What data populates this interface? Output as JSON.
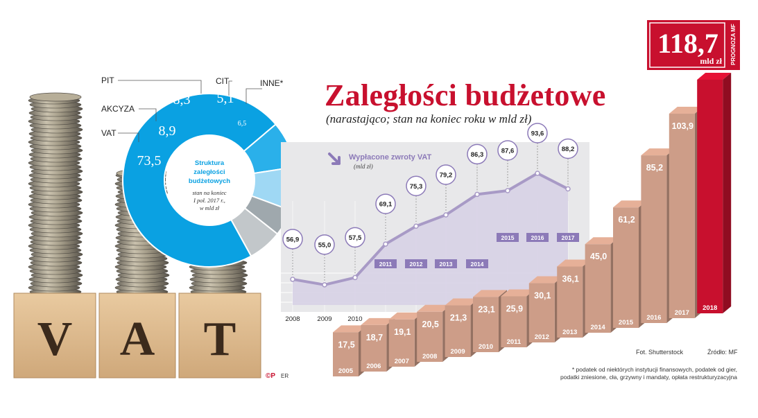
{
  "header": {
    "title": "Zaległości budżetowe",
    "subtitle": "(narastająco; stan na koniec roku w mld zł)",
    "forecast_value": "118,7",
    "forecast_unit": "mld zł",
    "forecast_label": "PROGNOZA MF"
  },
  "colors": {
    "accent_red": "#c8102e",
    "bar": "#cd9d88",
    "donut_blue": "#0aa1e2",
    "line_purple": "#a89ac6",
    "label_purple": "#8c7ab8"
  },
  "photo": {
    "blocks": [
      "V",
      "A",
      "T"
    ]
  },
  "footer": {
    "photo_credit": "Fot. Shutterstock",
    "source": "Źródło: MF",
    "logo": "©P",
    "author": "ER",
    "footnote": "* podatek od niektórych instytucji finansowych, podatek od gier,\npodatki zniesione, cła, grzywny i mandaty, opłata restrukturyzacyjna"
  },
  "chart_data": [
    {
      "type": "bar",
      "title": "Zaległości budżetowe",
      "subtitle": "(narastająco; stan na koniec roku w mld zł)",
      "categories": [
        "2005",
        "2006",
        "2007",
        "2008",
        "2009",
        "2010",
        "2011",
        "2012",
        "2013",
        "2014",
        "2015",
        "2016",
        "2017",
        "2018"
      ],
      "values": [
        17.5,
        18.7,
        19.1,
        20.5,
        21.3,
        23.1,
        25.9,
        30.1,
        36.1,
        45.0,
        61.2,
        85.2,
        103.9,
        118.7
      ],
      "value_labels": [
        "17,5",
        "18,7",
        "19,1",
        "20,5",
        "21,3",
        "23,1",
        "25,9",
        "30,1",
        "36,1",
        "45,0",
        "61,2",
        "85,2",
        "103,9",
        ""
      ],
      "highlighted_category": "2018",
      "highlighted_label": "118,7 mld zł",
      "highlighted_note": "PROGNOZA MF"
    },
    {
      "type": "area",
      "title": "Wypłacone zwroty VAT",
      "unit": "(mld zł)",
      "x": [
        "2008",
        "2009",
        "2010",
        "2011",
        "2012",
        "2013",
        "2014",
        "2015",
        "2016",
        "2017"
      ],
      "values": [
        56.9,
        55.0,
        57.5,
        69.1,
        75.3,
        79.2,
        86.3,
        87.6,
        93.6,
        88.2
      ],
      "value_labels": [
        "56,9",
        "55,0",
        "57,5",
        "69,1",
        "75,3",
        "79,2",
        "86,3",
        "87,6",
        "93,6",
        "88,2"
      ],
      "ylim": [
        48,
        96
      ],
      "grid": true
    },
    {
      "type": "pie",
      "title": "Struktura zaległości budżetowych",
      "note": "stan na koniec I poł. 2017 r., w mld zł",
      "labels": [
        "VAT",
        "AKCYZA",
        "PIT",
        "CIT",
        "INNE*"
      ],
      "values": [
        73.5,
        8.9,
        8.3,
        5.1,
        6.5
      ],
      "value_labels": [
        "73,5",
        "8,9",
        "8,3",
        "5,1",
        "6,5"
      ]
    }
  ]
}
